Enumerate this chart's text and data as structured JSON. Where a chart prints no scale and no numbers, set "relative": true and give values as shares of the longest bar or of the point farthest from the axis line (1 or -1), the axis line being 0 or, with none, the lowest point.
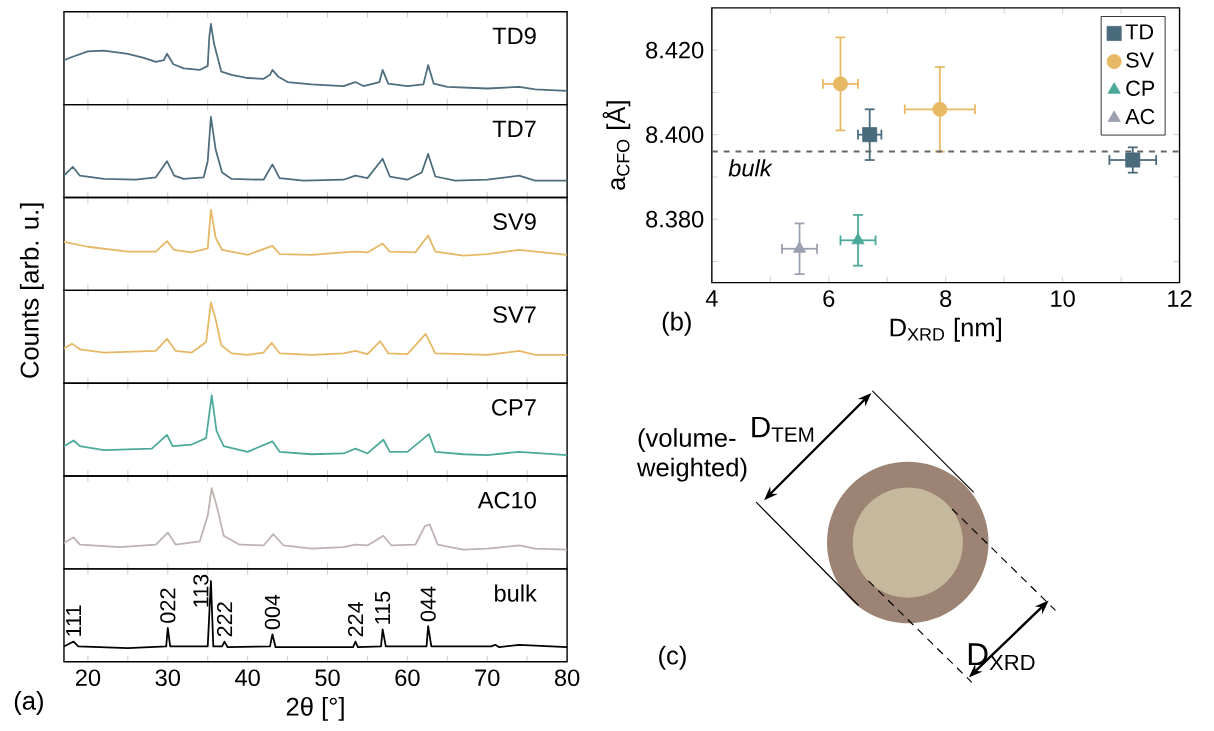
{
  "chart_data": [
    {
      "type": "line",
      "relative": true,
      "legend": false,
      "xlim": [
        17,
        80
      ],
      "xticks": [
        20,
        {
          "value": 25,
          "label": null
        },
        30,
        {
          "value": 35,
          "label": null
        },
        40,
        {
          "value": 45,
          "label": null
        },
        50,
        {
          "value": 55,
          "label": null
        },
        60,
        {
          "value": 65,
          "label": null
        },
        70,
        {
          "value": 75,
          "label": null
        },
        80
      ],
      "tick_labels": false,
      "x": [
        17,
        18,
        20,
        22,
        25,
        27,
        28.5,
        29.5,
        29.9,
        30.7,
        32,
        34,
        35.0,
        35.2,
        35.4,
        35.8,
        36.7,
        38,
        40,
        42,
        42.8,
        43.1,
        43.8,
        45,
        48,
        52,
        53.5,
        54.5,
        56.5,
        56.9,
        57.6,
        60,
        62,
        62.6,
        63.3,
        65,
        70,
        74,
        76,
        80
      ],
      "series": [
        {
          "name": "TD9",
          "color": "#4e6e7e",
          "values": [
            0.55,
            0.59,
            0.66,
            0.67,
            0.63,
            0.58,
            0.53,
            0.55,
            0.63,
            0.5,
            0.45,
            0.43,
            0.48,
            0.84,
            1,
            0.75,
            0.41,
            0.37,
            0.33,
            0.32,
            0.37,
            0.43,
            0.35,
            0.28,
            0.25,
            0.23,
            0.28,
            0.23,
            0.28,
            0.43,
            0.26,
            0.23,
            0.25,
            0.49,
            0.26,
            0.22,
            0.2,
            0.22,
            0.19,
            0.17
          ]
        }
      ]
    },
    {
      "type": "line",
      "relative": true,
      "legend": false,
      "xlim": [
        17,
        80
      ],
      "xticks": [
        20,
        {
          "value": 25,
          "label": null
        },
        30,
        {
          "value": 35,
          "label": null
        },
        40,
        {
          "value": 45,
          "label": null
        },
        50,
        {
          "value": 55,
          "label": null
        },
        60,
        {
          "value": 65,
          "label": null
        },
        70,
        {
          "value": 75,
          "label": null
        },
        80
      ],
      "tick_labels": false,
      "x": [
        17,
        18.1,
        19,
        22,
        26,
        28.5,
        29.9,
        30.8,
        32,
        34.5,
        35.0,
        35.4,
        36.0,
        36.8,
        38,
        42,
        43.1,
        44,
        47,
        52,
        53.5,
        55,
        56.9,
        57.8,
        60,
        61.8,
        62.6,
        63.5,
        66,
        70,
        74,
        76,
        80
      ],
      "series": [
        {
          "name": "TD7",
          "color": "#4e6e7e",
          "values": [
            0.27,
            0.38,
            0.27,
            0.23,
            0.22,
            0.25,
            0.45,
            0.27,
            0.23,
            0.25,
            0.45,
            1,
            0.59,
            0.31,
            0.23,
            0.22,
            0.41,
            0.24,
            0.21,
            0.22,
            0.27,
            0.24,
            0.48,
            0.26,
            0.22,
            0.31,
            0.54,
            0.26,
            0.21,
            0.22,
            0.27,
            0.21,
            0.21
          ]
        }
      ]
    },
    {
      "type": "line",
      "relative": true,
      "legend": false,
      "xlim": [
        17,
        80
      ],
      "xticks": [
        20,
        {
          "value": 25,
          "label": null
        },
        30,
        {
          "value": 35,
          "label": null
        },
        40,
        {
          "value": 45,
          "label": null
        },
        50,
        {
          "value": 55,
          "label": null
        },
        60,
        {
          "value": 65,
          "label": null
        },
        70,
        {
          "value": 75,
          "label": null
        },
        80
      ],
      "tick_labels": false,
      "x": [
        17,
        20,
        25,
        28.5,
        29.9,
        30.8,
        33,
        35.0,
        35.4,
        36.0,
        36.8,
        40,
        43.1,
        44,
        48,
        52,
        53.5,
        55,
        56.9,
        57.8,
        61,
        62.6,
        63.5,
        67,
        70,
        74,
        80
      ],
      "series": [
        {
          "name": "SV9",
          "color": "#e6b865",
          "values": [
            0.6,
            0.54,
            0.48,
            0.48,
            0.61,
            0.5,
            0.47,
            0.52,
            1,
            0.65,
            0.5,
            0.44,
            0.55,
            0.45,
            0.44,
            0.47,
            0.48,
            0.47,
            0.58,
            0.48,
            0.47,
            0.68,
            0.48,
            0.43,
            0.45,
            0.5,
            0.44
          ]
        }
      ]
    },
    {
      "type": "line",
      "relative": true,
      "legend": false,
      "ylabel": "Counts [arb. u.]",
      "xlim": [
        17,
        80
      ],
      "xticks": [
        20,
        {
          "value": 25,
          "label": null
        },
        30,
        {
          "value": 35,
          "label": null
        },
        40,
        {
          "value": 45,
          "label": null
        },
        50,
        {
          "value": 55,
          "label": null
        },
        60,
        {
          "value": 65,
          "label": null
        },
        70,
        {
          "value": 75,
          "label": null
        },
        80
      ],
      "tick_labels": false,
      "x": [
        17,
        18,
        19,
        22,
        28.5,
        29.9,
        31,
        33,
        34.8,
        35.4,
        36.0,
        36.7,
        38,
        40,
        42,
        43.0,
        44,
        48,
        52,
        53.5,
        55,
        56.6,
        57.6,
        60,
        62.3,
        63.5,
        67,
        70,
        74,
        76,
        80
      ],
      "series": [
        {
          "name": "SV7",
          "color": "#e6b865",
          "values": [
            0.43,
            0.49,
            0.42,
            0.38,
            0.4,
            0.55,
            0.4,
            0.38,
            0.51,
            1,
            0.79,
            0.47,
            0.37,
            0.35,
            0.38,
            0.5,
            0.37,
            0.35,
            0.37,
            0.4,
            0.36,
            0.52,
            0.37,
            0.36,
            0.61,
            0.37,
            0.36,
            0.35,
            0.4,
            0.35,
            0.35
          ]
        }
      ]
    },
    {
      "type": "line",
      "relative": true,
      "legend": false,
      "xlim": [
        17,
        80
      ],
      "xticks": [
        20,
        {
          "value": 25,
          "label": null
        },
        30,
        {
          "value": 35,
          "label": null
        },
        40,
        {
          "value": 45,
          "label": null
        },
        50,
        {
          "value": 55,
          "label": null
        },
        60,
        {
          "value": 65,
          "label": null
        },
        70,
        {
          "value": 75,
          "label": null
        },
        80
      ],
      "tick_labels": false,
      "x": [
        17,
        18.2,
        19,
        22,
        28,
        29.9,
        30.6,
        33,
        34.8,
        35.5,
        36.1,
        37,
        40,
        43.1,
        44,
        48,
        52,
        53.5,
        55,
        57.0,
        57.8,
        60,
        62.7,
        63.5,
        67,
        70,
        74,
        80
      ],
      "series": [
        {
          "name": "CP7",
          "color": "#4daa9a",
          "values": [
            0.37,
            0.44,
            0.37,
            0.32,
            0.34,
            0.51,
            0.37,
            0.39,
            0.47,
            1,
            0.56,
            0.37,
            0.3,
            0.43,
            0.3,
            0.27,
            0.28,
            0.34,
            0.28,
            0.45,
            0.3,
            0.3,
            0.52,
            0.3,
            0.27,
            0.26,
            0.3,
            0.26
          ]
        }
      ]
    },
    {
      "type": "line",
      "relative": true,
      "legend": false,
      "xlim": [
        17,
        80
      ],
      "xticks": [
        20,
        {
          "value": 25,
          "label": null
        },
        30,
        {
          "value": 35,
          "label": null
        },
        40,
        {
          "value": 45,
          "label": null
        },
        50,
        {
          "value": 55,
          "label": null
        },
        60,
        {
          "value": 65,
          "label": null
        },
        70,
        {
          "value": 75,
          "label": null
        },
        80
      ],
      "tick_labels": false,
      "x": [
        17,
        18.2,
        19,
        24,
        28.5,
        30.0,
        31,
        34,
        35.0,
        35.5,
        36.2,
        37,
        39,
        42,
        43.2,
        44.5,
        48,
        52,
        53.5,
        55,
        57.0,
        58,
        61,
        62.2,
        62.8,
        63.8,
        67,
        70,
        74,
        76,
        80
      ],
      "series": [
        {
          "name": "AC10",
          "color": "#bfb3b1",
          "values": [
            0.32,
            0.39,
            0.3,
            0.27,
            0.3,
            0.45,
            0.3,
            0.34,
            0.66,
            1,
            0.75,
            0.41,
            0.3,
            0.29,
            0.43,
            0.29,
            0.25,
            0.27,
            0.3,
            0.29,
            0.41,
            0.29,
            0.3,
            0.53,
            0.55,
            0.3,
            0.24,
            0.25,
            0.29,
            0.25,
            0.24
          ]
        }
      ]
    },
    {
      "type": "line",
      "relative": true,
      "legend": false,
      "xlabel": "2θ [°]",
      "xlim": [
        17,
        80
      ],
      "xticks": [
        20,
        {
          "value": 25,
          "label": null
        },
        30,
        {
          "value": 35,
          "label": null
        },
        40,
        {
          "value": 45,
          "label": null
        },
        50,
        {
          "value": 55,
          "label": null
        },
        60,
        {
          "value": 65,
          "label": null
        },
        70,
        {
          "value": 75,
          "label": null
        },
        80
      ],
      "tick_labels": "x",
      "x": [
        17,
        18.2,
        18.8,
        25,
        29.8,
        30.0,
        30.3,
        35.0,
        35.4,
        35.7,
        36.8,
        37.1,
        37.5,
        42.8,
        43.1,
        43.5,
        53.2,
        53.5,
        53.8,
        56.7,
        56.9,
        57.3,
        62.4,
        62.6,
        63.0,
        70.5,
        71.0,
        71.5,
        74,
        80
      ],
      "series": [
        {
          "name": "bulk",
          "color": "#000000",
          "values": [
            0.19,
            0.25,
            0.19,
            0.17,
            0.19,
            0.42,
            0.19,
            0.19,
            1,
            0.19,
            0.19,
            0.25,
            0.18,
            0.19,
            0.34,
            0.18,
            0.18,
            0.25,
            0.18,
            0.19,
            0.4,
            0.19,
            0.19,
            0.44,
            0.19,
            0.19,
            0.21,
            0.18,
            0.21,
            0.18
          ]
        }
      ],
      "annotations": [
        {
          "text": "111",
          "x": 18.2,
          "y": 0.25
        },
        {
          "text": "022",
          "x": 30.0,
          "y": 0.42
        },
        {
          "text": "113",
          "x": 35.4,
          "y": 1
        },
        {
          "text": "222",
          "x": 37.1,
          "y": 0.25
        },
        {
          "text": "004",
          "x": 43.1,
          "y": 0.34
        },
        {
          "text": "224",
          "x": 53.5,
          "y": 0.25
        },
        {
          "text": "115",
          "x": 56.9,
          "y": 0.4
        },
        {
          "text": "044",
          "x": 62.6,
          "y": 0.44
        },
        "(a)"
      ]
    },
    {
      "type": "scatter",
      "xlabel": "D$_{XRD}$ [nm]",
      "ylabel": "a$_{CFO}$ [Å]",
      "legend": "top right",
      "xlim": [
        4,
        12
      ],
      "ylim": [
        8.365,
        8.43
      ],
      "xticks": [
        4,
        {
          "value": 5,
          "label": null
        },
        6,
        {
          "value": 7,
          "label": null
        },
        8,
        {
          "value": 9,
          "label": null
        },
        10,
        {
          "value": 11,
          "label": null
        },
        12
      ],
      "yticks": [
        {
          "value": 8.37,
          "label": null
        },
        {
          "value": 8.38,
          "label": "8.380"
        },
        {
          "value": 8.39,
          "label": null
        },
        {
          "value": 8.4,
          "label": "8.400"
        },
        {
          "value": 8.41,
          "label": null
        },
        {
          "value": 8.42,
          "label": "8.420"
        }
      ],
      "ref_lines": [
        {
          "axis": "y",
          "value": 8.396,
          "label": "bulk",
          "color": "#666666",
          "line_style": "dashed"
        }
      ],
      "series": [
        {
          "name": "TD",
          "color": "#4a6b7c",
          "marker": "square",
          "x": [
            6.7,
            11.2
          ],
          "values": [
            8.4,
            8.394
          ],
          "errors": [
            0.006,
            0.003
          ],
          "xerrors": [
            0.2,
            0.4
          ]
        },
        {
          "name": "SV",
          "color": "#e8b964",
          "marker": "circle",
          "x": [
            6.2,
            7.9
          ],
          "values": [
            8.412,
            8.406
          ],
          "errors": [
            0.011,
            0.01
          ],
          "xerrors": [
            0.3,
            0.6
          ]
        },
        {
          "name": "CP",
          "color": "#4aa89a",
          "marker": "triangle",
          "x": [
            6.5
          ],
          "values": [
            8.375
          ],
          "errors": [
            0.006
          ],
          "xerrors": [
            0.3
          ]
        },
        {
          "name": "AC",
          "color": "#9aa0b0",
          "marker": "triangle",
          "x": [
            5.5
          ],
          "values": [
            8.373
          ],
          "errors": [
            0.006
          ],
          "xerrors": [
            0.3
          ]
        }
      ],
      "annotations": [
        "(b)"
      ]
    },
    {
      "type": "other",
      "annotations": [
        "D$_{TEM}$",
        "(volume-weighted)",
        "D$_{XRD}$",
        "(c)"
      ]
    }
  ]
}
